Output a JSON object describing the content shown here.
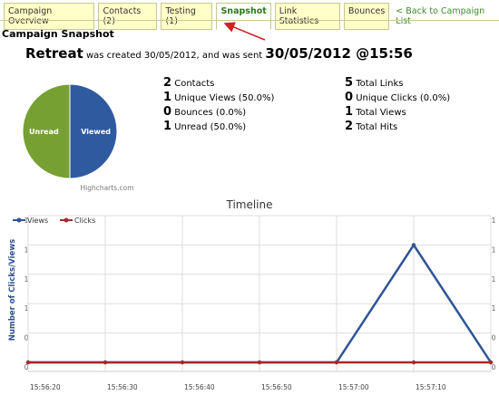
{
  "tabs": [
    "Campaign Overview",
    "Contacts (2)",
    "Testing (1)",
    "Snapshot",
    "Link Statistics",
    "Bounces"
  ],
  "active_tab": 3,
  "back_link": "< Back to Campaign List",
  "heading": "Campaign Snapshot",
  "summary": {
    "campaign": "Retreat",
    "text": "was created 30/05/2012, and was sent",
    "sent": "30/05/2012 @15:56"
  },
  "stats_left": [
    {
      "value": "2",
      "label": "Contacts"
    },
    {
      "value": "1",
      "label": "Unique Views (50.0%)"
    },
    {
      "value": "0",
      "label": "Bounces (0.0%)"
    },
    {
      "value": "1",
      "label": "Unread (50.0%)"
    }
  ],
  "stats_right": [
    {
      "value": "5",
      "label": "Total Links"
    },
    {
      "value": "0",
      "label": "Unique Clicks (0.0%)"
    },
    {
      "value": "1",
      "label": "Total Views"
    },
    {
      "value": "2",
      "label": "Total Hits"
    }
  ],
  "chart_data": [
    {
      "type": "pie",
      "categories": [
        "Unread",
        "Viewed"
      ],
      "values": [
        1,
        1
      ],
      "colors": [
        "#77a033",
        "#2f5aa0"
      ],
      "credit": "Highcharts.com"
    },
    {
      "type": "line",
      "title": "Timeline",
      "y_label": "Number of Clicks/Views",
      "categories": [
        "15:56:20",
        "15:56:30",
        "15:56:40",
        "15:56:50",
        "15:57:00",
        "15:57:10",
        null
      ],
      "series": [
        {
          "name": "Views",
          "color": "#2f5597",
          "values": [
            0,
            0,
            0,
            0,
            0,
            1,
            0
          ]
        },
        {
          "name": "Clicks",
          "color": "#a52a2a",
          "values": [
            0,
            0,
            0,
            0,
            0,
            0,
            0
          ]
        }
      ],
      "ylim": [
        0,
        1.25
      ],
      "yticks": [
        {
          "value": 0,
          "label": "0"
        },
        {
          "value": 0.25,
          "label": "0"
        },
        {
          "value": 0.5,
          "label": "1"
        },
        {
          "value": 0.75,
          "label": "1"
        },
        {
          "value": 1,
          "label": "1"
        },
        {
          "value": 1.25,
          "label": "1"
        }
      ],
      "grid": true,
      "legend": "top-left"
    }
  ]
}
